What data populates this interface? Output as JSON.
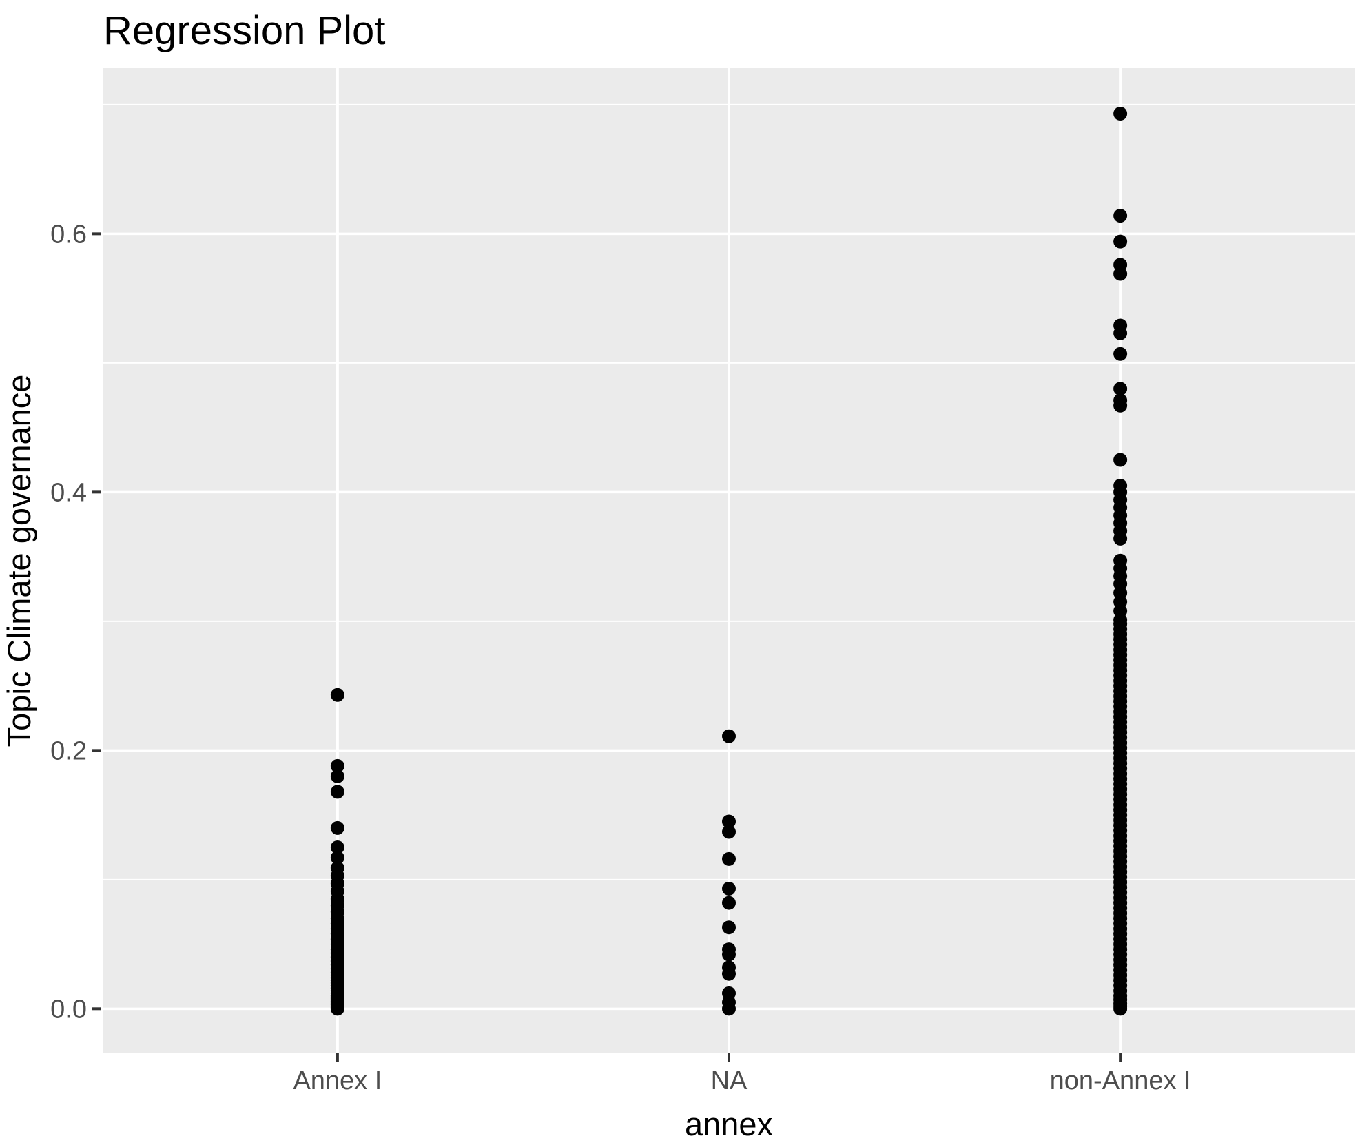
{
  "chart_data": {
    "type": "scatter",
    "title": "Regression Plot",
    "xlabel": "annex",
    "ylabel": "Topic Climate governance",
    "categories": [
      "Annex I",
      "NA",
      "non-Annex I"
    ],
    "y_ticks": [
      "0.0",
      "0.2",
      "0.4",
      "0.6"
    ],
    "y_tick_values": [
      0.0,
      0.2,
      0.4,
      0.6
    ],
    "y_minor_values": [
      0.1,
      0.3,
      0.5,
      0.7
    ],
    "ylim": [
      -0.0345,
      0.7282
    ],
    "grid": "on",
    "legend": "none",
    "colors": {
      "panel_bg": "#EBEBEB",
      "gridline": "#FFFFFF",
      "point": "#000000",
      "tick_mark": "#333333",
      "tick_label": "#4D4D4D",
      "text": "#000000",
      "plot_bg": "#FFFFFF"
    },
    "series": [
      {
        "name": "Annex I",
        "values": [
          0.243,
          0.188,
          0.18,
          0.168,
          0.14,
          0.125,
          0.117,
          0.109,
          0.103,
          0.097,
          0.091,
          0.085,
          0.08,
          0.075,
          0.07,
          0.066,
          0.062,
          0.058,
          0.054,
          0.05,
          0.046,
          0.043,
          0.04,
          0.037,
          0.034,
          0.031,
          0.028,
          0.026,
          0.024,
          0.022,
          0.02,
          0.018,
          0.016,
          0.014,
          0.012,
          0.01,
          0.009,
          0.008,
          0.007,
          0.006,
          0.005,
          0.004,
          0.003,
          0.002,
          0.001,
          0.0
        ]
      },
      {
        "name": "NA",
        "values": [
          0.211,
          0.145,
          0.137,
          0.116,
          0.093,
          0.082,
          0.063,
          0.046,
          0.042,
          0.032,
          0.027,
          0.012,
          0.005,
          0.0
        ]
      },
      {
        "name": "non-Annex I",
        "values": [
          0.693,
          0.614,
          0.594,
          0.576,
          0.569,
          0.529,
          0.523,
          0.507,
          0.48,
          0.471,
          0.467,
          0.425,
          0.405,
          0.4,
          0.394,
          0.388,
          0.382,
          0.376,
          0.37,
          0.364,
          0.347,
          0.341,
          0.335,
          0.329,
          0.322,
          0.315,
          0.308,
          0.301,
          0.298,
          0.294,
          0.29,
          0.286,
          0.282,
          0.278,
          0.274,
          0.27,
          0.266,
          0.262,
          0.258,
          0.254,
          0.25,
          0.246,
          0.242,
          0.238,
          0.234,
          0.23,
          0.226,
          0.222,
          0.218,
          0.214,
          0.21,
          0.206,
          0.202,
          0.198,
          0.194,
          0.19,
          0.186,
          0.182,
          0.178,
          0.174,
          0.17,
          0.166,
          0.162,
          0.158,
          0.154,
          0.15,
          0.146,
          0.142,
          0.138,
          0.134,
          0.13,
          0.126,
          0.122,
          0.118,
          0.114,
          0.11,
          0.106,
          0.102,
          0.098,
          0.094,
          0.09,
          0.086,
          0.082,
          0.078,
          0.074,
          0.07,
          0.066,
          0.062,
          0.058,
          0.054,
          0.05,
          0.046,
          0.042,
          0.038,
          0.034,
          0.03,
          0.026,
          0.022,
          0.018,
          0.014,
          0.01,
          0.007,
          0.004,
          0.002,
          0.0
        ]
      }
    ]
  }
}
